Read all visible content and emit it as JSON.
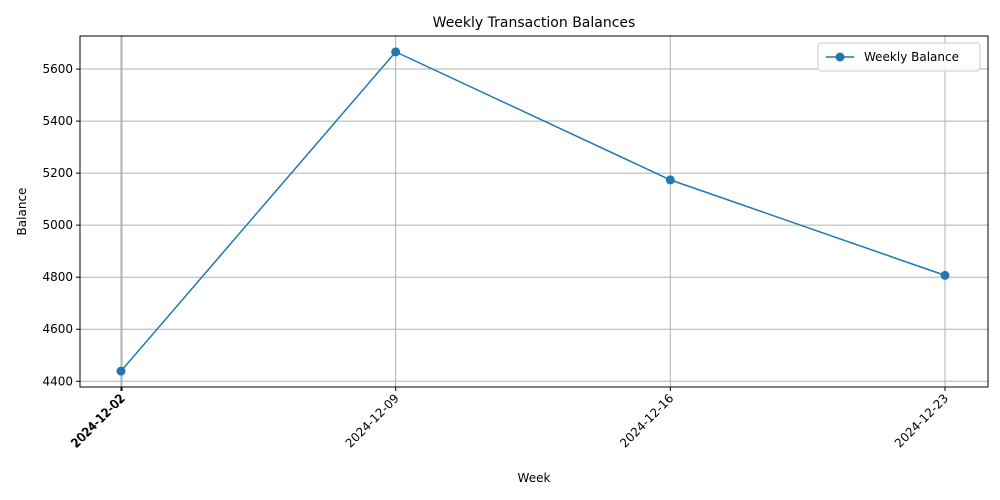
{
  "chart_data": {
    "type": "line",
    "title": "Weekly Transaction Balances",
    "xlabel": "Week",
    "ylabel": "Balance",
    "x": [
      "2024-12-02",
      "2024-12-09",
      "2024-12-16",
      "2024-12-23"
    ],
    "x_tick_labels": [
      "2024-12-02",
      "2024-12-02",
      "2024-12-09",
      "2024-12-16",
      "2024-12-23"
    ],
    "y_ticks": [
      4400,
      4600,
      4800,
      5000,
      5200,
      5400,
      5600
    ],
    "ylim": [
      4378,
      5727
    ],
    "series": [
      {
        "name": "Weekly Balance",
        "values": [
          4439,
          5666,
          5174,
          4807
        ],
        "color": "#1f77b4",
        "marker": "circle"
      }
    ],
    "grid": true,
    "legend": "top-right"
  }
}
